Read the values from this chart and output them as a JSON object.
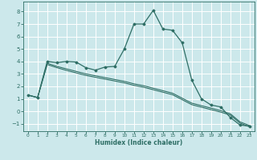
{
  "title": "",
  "xlabel": "Humidex (Indice chaleur)",
  "bg_color": "#cce8eb",
  "line_color": "#2e6e65",
  "grid_color": "#ffffff",
  "xlim": [
    -0.5,
    23.5
  ],
  "ylim": [
    -1.6,
    8.8
  ],
  "xticks": [
    0,
    1,
    2,
    3,
    4,
    5,
    6,
    7,
    8,
    9,
    10,
    11,
    12,
    13,
    14,
    15,
    16,
    17,
    18,
    19,
    20,
    21,
    22,
    23
  ],
  "yticks": [
    -1,
    0,
    1,
    2,
    3,
    4,
    5,
    6,
    7,
    8
  ],
  "curve1_x": [
    0,
    1,
    2,
    3,
    4,
    5,
    6,
    7,
    8,
    9,
    10,
    11,
    12,
    13,
    14,
    15,
    16,
    17,
    18,
    19,
    20,
    21,
    22,
    23
  ],
  "curve1_y": [
    1.3,
    1.1,
    4.0,
    3.9,
    4.0,
    3.95,
    3.5,
    3.3,
    3.55,
    3.6,
    5.0,
    7.0,
    7.0,
    8.1,
    6.6,
    6.5,
    5.5,
    2.5,
    1.0,
    0.5,
    0.35,
    -0.5,
    -1.1,
    -1.2
  ],
  "curve2_x": [
    0,
    1,
    2,
    3,
    4,
    5,
    6,
    7,
    8,
    9,
    10,
    11,
    12,
    13,
    14,
    15,
    16,
    17,
    18,
    19,
    20,
    21,
    22,
    23
  ],
  "curve2_y": [
    1.3,
    1.1,
    3.85,
    3.6,
    3.4,
    3.2,
    3.0,
    2.85,
    2.7,
    2.55,
    2.4,
    2.2,
    2.05,
    1.85,
    1.65,
    1.45,
    1.05,
    0.65,
    0.45,
    0.25,
    0.05,
    -0.2,
    -0.85,
    -1.15
  ],
  "curve3_x": [
    0,
    1,
    2,
    3,
    4,
    5,
    6,
    7,
    8,
    9,
    10,
    11,
    12,
    13,
    14,
    15,
    16,
    17,
    18,
    19,
    20,
    21,
    22,
    23
  ],
  "curve3_y": [
    1.3,
    1.1,
    3.75,
    3.5,
    3.28,
    3.08,
    2.88,
    2.73,
    2.58,
    2.43,
    2.28,
    2.08,
    1.93,
    1.73,
    1.53,
    1.33,
    0.93,
    0.53,
    0.33,
    0.13,
    -0.07,
    -0.3,
    -0.95,
    -1.25
  ]
}
